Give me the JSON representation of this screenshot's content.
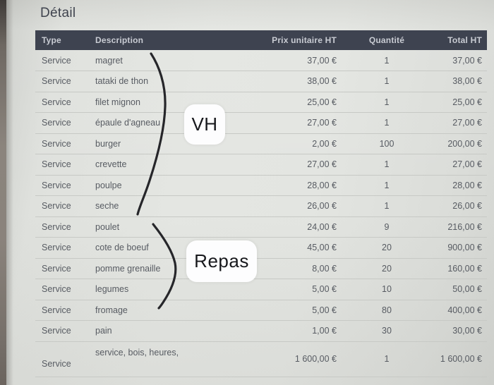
{
  "page": {
    "title": "Détail"
  },
  "table": {
    "columns": [
      "Type",
      "Description",
      "Prix unitaire HT",
      "Quantité",
      "Total HT"
    ],
    "rows": [
      {
        "type": "Service",
        "description": "magret",
        "unit_price": "37,00 €",
        "quantity": "1",
        "total": "37,00 €"
      },
      {
        "type": "Service",
        "description": "tataki de thon",
        "unit_price": "38,00 €",
        "quantity": "1",
        "total": "38,00 €"
      },
      {
        "type": "Service",
        "description": "filet mignon",
        "unit_price": "25,00 €",
        "quantity": "1",
        "total": "25,00 €"
      },
      {
        "type": "Service",
        "description": "épaule d'agneau",
        "unit_price": "27,00 €",
        "quantity": "1",
        "total": "27,00 €"
      },
      {
        "type": "Service",
        "description": "burger",
        "unit_price": "2,00 €",
        "quantity": "100",
        "total": "200,00 €"
      },
      {
        "type": "Service",
        "description": "crevette",
        "unit_price": "27,00 €",
        "quantity": "1",
        "total": "27,00 €"
      },
      {
        "type": "Service",
        "description": "poulpe",
        "unit_price": "28,00 €",
        "quantity": "1",
        "total": "28,00 €"
      },
      {
        "type": "Service",
        "description": "seche",
        "unit_price": "26,00 €",
        "quantity": "1",
        "total": "26,00 €"
      },
      {
        "type": "Service",
        "description": "poulet",
        "unit_price": "24,00 €",
        "quantity": "9",
        "total": "216,00 €"
      },
      {
        "type": "Service",
        "description": "cote de boeuf",
        "unit_price": "45,00 €",
        "quantity": "20",
        "total": "900,00 €"
      },
      {
        "type": "Service",
        "description": "pomme grenaille",
        "unit_price": "8,00 €",
        "quantity": "20",
        "total": "160,00 €"
      },
      {
        "type": "Service",
        "description": "legumes",
        "unit_price": "5,00 €",
        "quantity": "10",
        "total": "50,00 €"
      },
      {
        "type": "Service",
        "description": "fromage",
        "unit_price": "5,00 €",
        "quantity": "80",
        "total": "400,00 €"
      },
      {
        "type": "Service",
        "description": "pain",
        "unit_price": "1,00 €",
        "quantity": "30",
        "total": "30,00 €"
      },
      {
        "type": "Service",
        "description": "service, bois, heures,",
        "unit_price": "1 600,00 €",
        "quantity": "1",
        "total": "1 600,00 €"
      }
    ]
  },
  "annotations": {
    "group1_label": "VH",
    "group2_label": "Repas"
  },
  "colors": {
    "header_bg": "#3e4350",
    "header_text": "#c9ccd3",
    "paper": "#e3e5e1",
    "body_text": "#575b62",
    "ink": "#26262a",
    "annotation_bg": "#fdfdfe"
  }
}
